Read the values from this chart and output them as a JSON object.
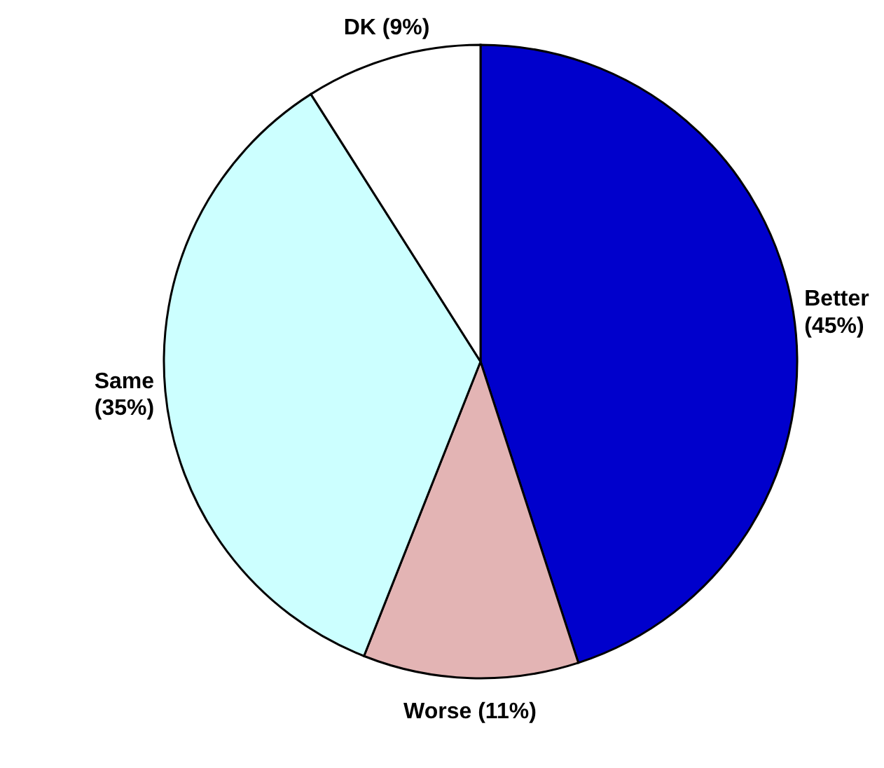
{
  "chart_data": {
    "type": "pie",
    "categories": [
      "Better",
      "Worse",
      "Same",
      "DK"
    ],
    "values": [
      45,
      11,
      35,
      9
    ],
    "colors": [
      "#0000cc",
      "#e3b4b4",
      "#ccffff",
      "#ffffff"
    ],
    "value_labels": [
      "(45%)",
      "(11%)",
      "(35%)",
      "(9%)"
    ]
  }
}
